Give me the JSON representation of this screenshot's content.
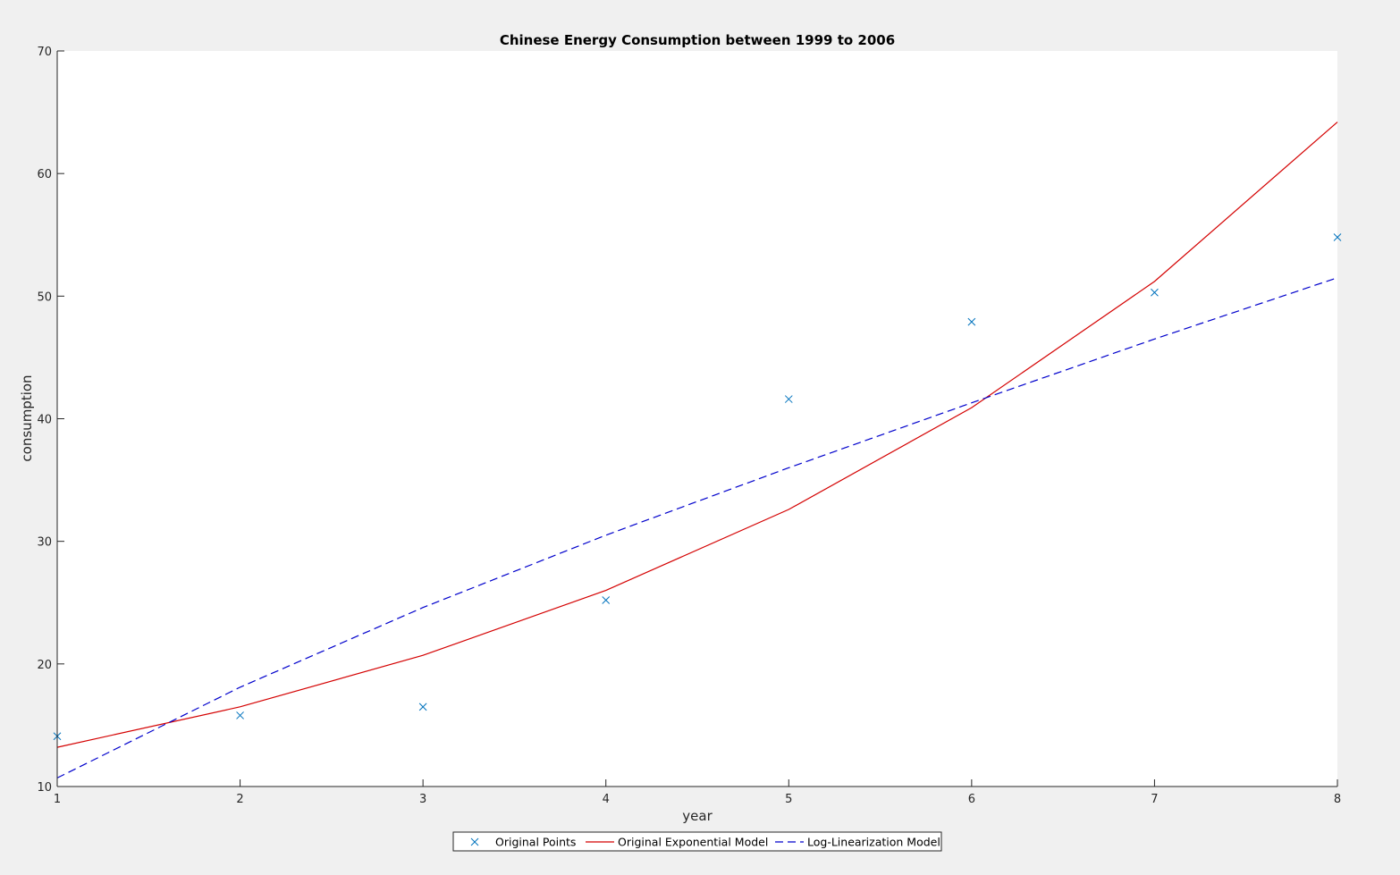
{
  "chart_data": {
    "type": "line",
    "title": "Chinese Energy Consumption between 1999 to 2006",
    "xlabel": "year",
    "ylabel": "consumption",
    "xlim": [
      1,
      8
    ],
    "ylim": [
      10,
      70
    ],
    "xticks": [
      1,
      2,
      3,
      4,
      5,
      6,
      7,
      8
    ],
    "yticks": [
      10,
      20,
      30,
      40,
      50,
      60,
      70
    ],
    "grid": false,
    "legend_position": "bottom-center",
    "series": [
      {
        "name": "Original Points",
        "style": "marker-x",
        "color": "#0072bd",
        "x": [
          1,
          2,
          3,
          4,
          5,
          6,
          7,
          8
        ],
        "y": [
          14.1,
          15.8,
          16.5,
          25.2,
          41.6,
          47.9,
          50.3,
          54.8
        ]
      },
      {
        "name": "Original Exponential Model",
        "style": "solid",
        "color": "#d40000",
        "x": [
          1,
          2,
          3,
          4,
          5,
          6,
          7,
          8
        ],
        "y": [
          13.2,
          16.5,
          20.7,
          26.0,
          32.6,
          40.9,
          51.2,
          64.2
        ]
      },
      {
        "name": "Log-Linearization Model",
        "style": "dashed",
        "color": "#0000cc",
        "x": [
          1,
          2,
          3,
          4,
          5,
          6,
          7,
          8
        ],
        "y": [
          10.7,
          18.1,
          24.6,
          30.5,
          36.0,
          41.3,
          46.5,
          51.5
        ]
      }
    ]
  }
}
